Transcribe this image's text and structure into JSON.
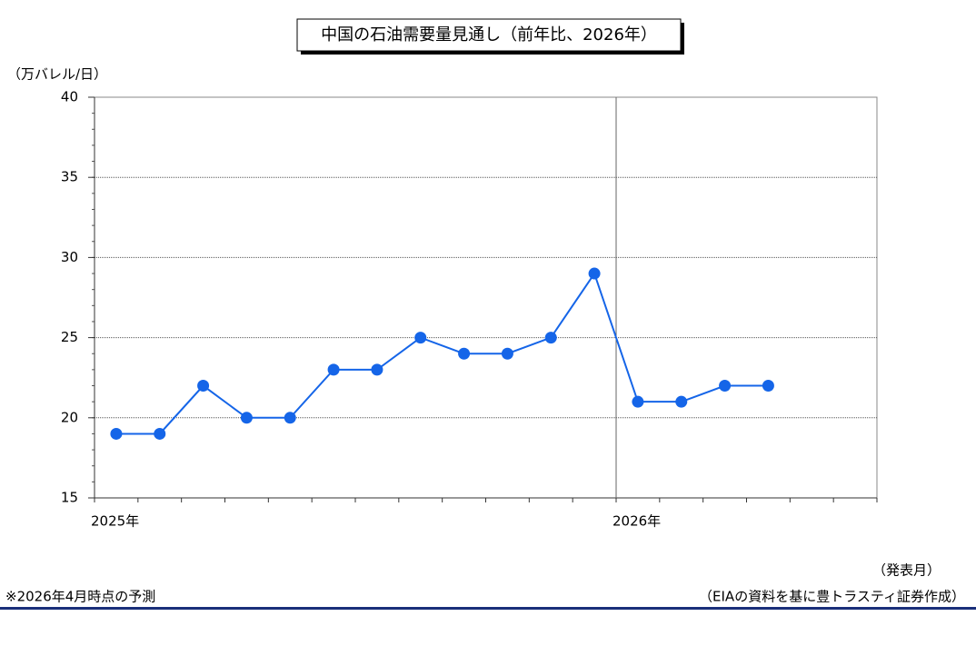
{
  "chart_data": {
    "type": "line",
    "title": "中国の石油需要量見通し（前年比、2026年）",
    "y_label": "（万バレル/日）",
    "x_label": "（発表月）",
    "note": "※2026年4月時点の予測",
    "source": "（EIAの資料を基に豊トラスティ証券作成）",
    "categories": [
      "2025年",
      null,
      null,
      null,
      null,
      null,
      null,
      null,
      null,
      null,
      null,
      null,
      "2026年",
      null,
      null,
      null,
      null,
      null
    ],
    "series": [
      {
        "name": "中国の石油需要量",
        "color": "#1565e8",
        "values": [
          19,
          19,
          22,
          20,
          20,
          23,
          23,
          25,
          24,
          24,
          25,
          29,
          21,
          21,
          22,
          22,
          null,
          null
        ]
      }
    ],
    "ylim": [
      15,
      40
    ],
    "yticks": [
      15,
      20,
      25,
      30,
      35,
      40
    ],
    "grid": true
  }
}
